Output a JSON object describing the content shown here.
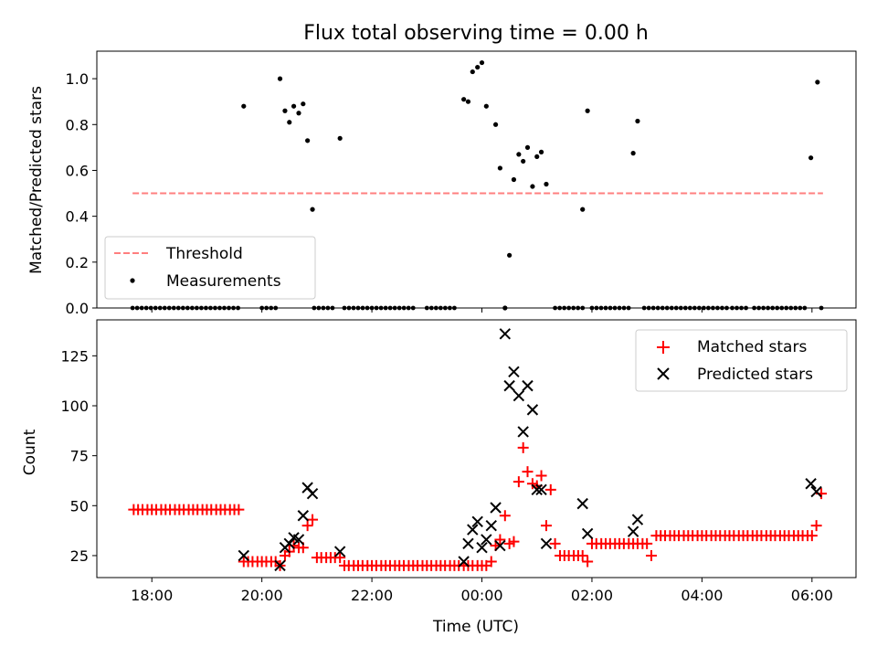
{
  "chart_data": [
    {
      "type": "scatter",
      "title": "Flux total observing time = 0.00 h",
      "ylabel": "Matched/Predicted stars",
      "xlabel": "",
      "ylim": [
        0,
        1.12
      ],
      "yticks": [
        0.0,
        0.2,
        0.4,
        0.6,
        0.8,
        1.0
      ],
      "ytick_labels": [
        "0.0",
        "0.2",
        "0.4",
        "0.6",
        "0.8",
        "1.0"
      ],
      "legend_position": "lower-left",
      "grid": false,
      "threshold": {
        "name": "Threshold",
        "value": 0.5,
        "x_range": [
          17.65,
          30.2
        ],
        "color": "#ff7f7f"
      },
      "series": [
        {
          "name": "Measurements",
          "color": "#000000",
          "x": [
            19.67,
            20.33,
            20.42,
            20.5,
            20.58,
            20.67,
            20.75,
            20.83,
            20.92,
            21.42,
            23.67,
            23.75,
            23.83,
            23.92,
            24.0,
            24.08,
            24.25,
            24.33,
            24.42,
            24.5,
            24.58,
            24.67,
            24.75,
            24.83,
            24.92,
            25.0,
            25.08,
            25.17,
            25.83,
            25.92,
            26.75,
            26.83,
            29.98,
            30.1
          ],
          "values": [
            0.88,
            1.0,
            0.86,
            0.81,
            0.88,
            0.85,
            0.89,
            0.73,
            0.43,
            0.74,
            0.91,
            0.9,
            1.03,
            1.05,
            1.07,
            0.88,
            0.8,
            0.61,
            0.0,
            0.23,
            0.56,
            0.67,
            0.64,
            0.7,
            0.53,
            0.66,
            0.68,
            0.54,
            0.43,
            0.86,
            0.675,
            0.815,
            0.655,
            0.985
          ],
          "zero_values_x_ranges": [
            [
              17.65,
              19.63
            ],
            [
              20.0,
              20.3
            ],
            [
              20.95,
              21.35
            ],
            [
              21.5,
              22.83
            ],
            [
              23.0,
              23.58
            ],
            [
              24.42,
              24.42
            ],
            [
              25.33,
              25.83
            ],
            [
              26.0,
              26.67
            ],
            [
              26.95,
              28.5
            ],
            [
              28.55,
              28.85
            ],
            [
              28.95,
              29.87
            ],
            [
              30.17,
              30.17
            ]
          ]
        }
      ]
    },
    {
      "type": "scatter",
      "title": "",
      "ylabel": "Count",
      "xlabel": "Time (UTC)",
      "ylim": [
        14,
        143
      ],
      "yticks": [
        25,
        50,
        75,
        100,
        125
      ],
      "ytick_labels": [
        "25",
        "50",
        "75",
        "100",
        "125"
      ],
      "xlim": [
        17.0,
        30.8
      ],
      "xticks": [
        18,
        20,
        22,
        24,
        26,
        28,
        30
      ],
      "xtick_labels": [
        "18:00",
        "20:00",
        "22:00",
        "00:00",
        "02:00",
        "04:00",
        "06:00"
      ],
      "legend_position": "top-right",
      "grid": false,
      "series": [
        {
          "name": "Matched stars",
          "marker": "+",
          "color": "#ff0000",
          "x": [
            17.67,
            17.75,
            17.83,
            17.92,
            18.0,
            18.08,
            18.17,
            18.25,
            18.33,
            18.42,
            18.5,
            18.58,
            18.67,
            18.75,
            18.83,
            18.92,
            19.0,
            19.08,
            19.17,
            19.25,
            19.33,
            19.42,
            19.5,
            19.58,
            19.67,
            19.75,
            19.83,
            19.92,
            20.0,
            20.08,
            20.17,
            20.25,
            20.33,
            20.42,
            20.5,
            20.58,
            20.67,
            20.75,
            20.83,
            20.92,
            21.0,
            21.08,
            21.17,
            21.25,
            21.33,
            21.42,
            21.5,
            21.58,
            21.67,
            21.75,
            21.83,
            21.92,
            22.0,
            22.08,
            22.17,
            22.25,
            22.33,
            22.42,
            22.5,
            22.58,
            22.67,
            22.75,
            22.83,
            22.92,
            23.0,
            23.08,
            23.17,
            23.25,
            23.33,
            23.42,
            23.5,
            23.58,
            23.67,
            23.75,
            23.83,
            23.92,
            24.0,
            24.08,
            24.17,
            24.25,
            24.33,
            24.42,
            24.5,
            24.58,
            24.67,
            24.75,
            24.83,
            24.92,
            25.0,
            25.08,
            25.17,
            25.25,
            25.33,
            25.42,
            25.5,
            25.58,
            25.67,
            25.75,
            25.83,
            25.92,
            26.0,
            26.08,
            26.17,
            26.25,
            26.33,
            26.42,
            26.5,
            26.58,
            26.67,
            26.75,
            26.83,
            26.92,
            27.0,
            27.08,
            27.17,
            27.25,
            27.33,
            27.42,
            27.5,
            27.58,
            27.67,
            27.75,
            27.83,
            27.92,
            28.0,
            28.08,
            28.17,
            28.25,
            28.33,
            28.42,
            28.5,
            28.58,
            28.67,
            28.75,
            28.83,
            28.92,
            29.0,
            29.08,
            29.17,
            29.25,
            29.33,
            29.42,
            29.5,
            29.58,
            29.67,
            29.75,
            29.83,
            29.92,
            30.0,
            30.08,
            30.17
          ],
          "values": [
            48,
            48,
            48,
            48,
            48,
            48,
            48,
            48,
            48,
            48,
            48,
            48,
            48,
            48,
            48,
            48,
            48,
            48,
            48,
            48,
            48,
            48,
            48,
            48,
            22,
            22,
            22,
            22,
            22,
            22,
            22,
            22,
            20,
            25,
            27,
            30,
            29,
            29,
            40,
            43,
            24,
            24,
            24,
            24,
            24,
            24,
            20,
            20,
            20,
            20,
            20,
            20,
            20,
            20,
            20,
            20,
            20,
            20,
            20,
            20,
            20,
            20,
            20,
            20,
            20,
            20,
            20,
            20,
            20,
            20,
            20,
            20,
            20,
            20,
            20,
            20,
            20,
            20,
            22,
            30,
            33,
            45,
            31,
            32,
            62,
            79,
            67,
            61,
            60,
            65,
            40,
            58,
            31,
            25,
            25,
            25,
            25,
            25,
            25,
            22,
            31,
            31,
            31,
            31,
            31,
            31,
            31,
            31,
            31,
            31,
            31,
            31,
            31,
            25,
            35,
            35,
            35,
            35,
            35,
            35,
            35,
            35,
            35,
            35,
            35,
            35,
            35,
            35,
            35,
            35,
            35,
            35,
            35,
            35,
            35,
            35,
            35,
            35,
            35,
            35,
            35,
            35,
            35,
            35,
            35,
            35,
            35,
            35,
            35,
            40,
            56
          ]
        },
        {
          "name": "Predicted stars",
          "marker": "x",
          "color": "#000000",
          "x": [
            19.67,
            20.33,
            20.42,
            20.5,
            20.58,
            20.67,
            20.75,
            20.83,
            20.92,
            21.42,
            23.67,
            23.75,
            23.83,
            23.92,
            24.0,
            24.08,
            24.17,
            24.25,
            24.33,
            24.42,
            24.5,
            24.58,
            24.67,
            24.75,
            24.83,
            24.92,
            25.0,
            25.08,
            25.17,
            25.83,
            25.92,
            26.75,
            26.83,
            29.98,
            30.08
          ],
          "values": [
            25,
            20,
            29,
            31,
            34,
            33,
            45,
            59,
            56,
            27,
            22,
            31,
            38,
            42,
            29,
            33,
            40,
            49,
            30,
            136,
            110,
            117,
            105,
            87,
            110,
            98,
            58,
            58,
            31,
            51,
            36,
            37,
            43,
            61,
            57
          ]
        }
      ]
    }
  ]
}
